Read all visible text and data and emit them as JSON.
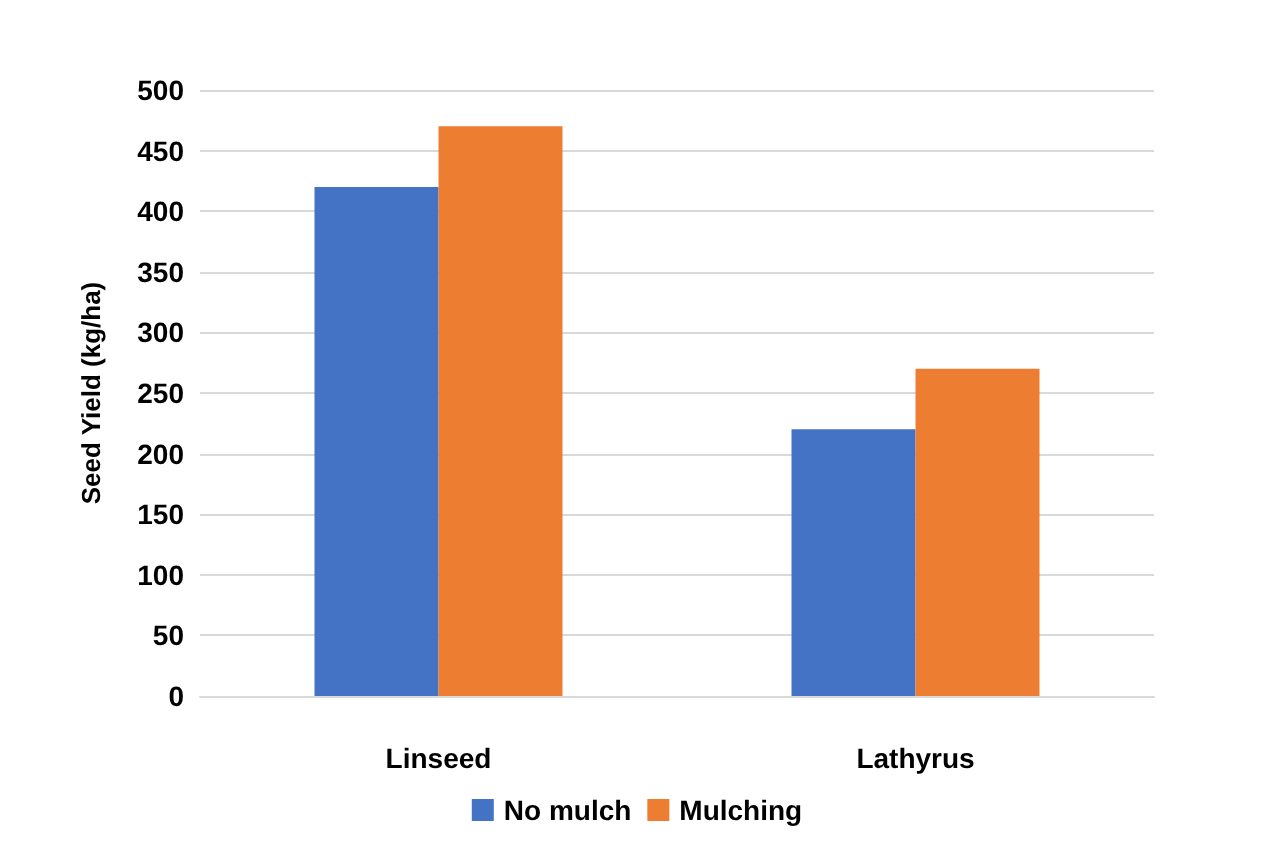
{
  "chart_data": {
    "type": "bar",
    "ylabel": "Seed Yield (kg/ha)",
    "categories": [
      "Linseed",
      "Lathyrus"
    ],
    "series": [
      {
        "name": "No mulch",
        "color": "#4472c4",
        "values": [
          420,
          220
        ]
      },
      {
        "name": "Mulching",
        "color": "#ed7d31",
        "values": [
          470,
          270
        ]
      }
    ],
    "ylim": [
      0,
      500
    ],
    "yticks": [
      0,
      50,
      100,
      150,
      200,
      250,
      300,
      350,
      400,
      450,
      500
    ],
    "grid": "y",
    "legend": "bottom"
  }
}
